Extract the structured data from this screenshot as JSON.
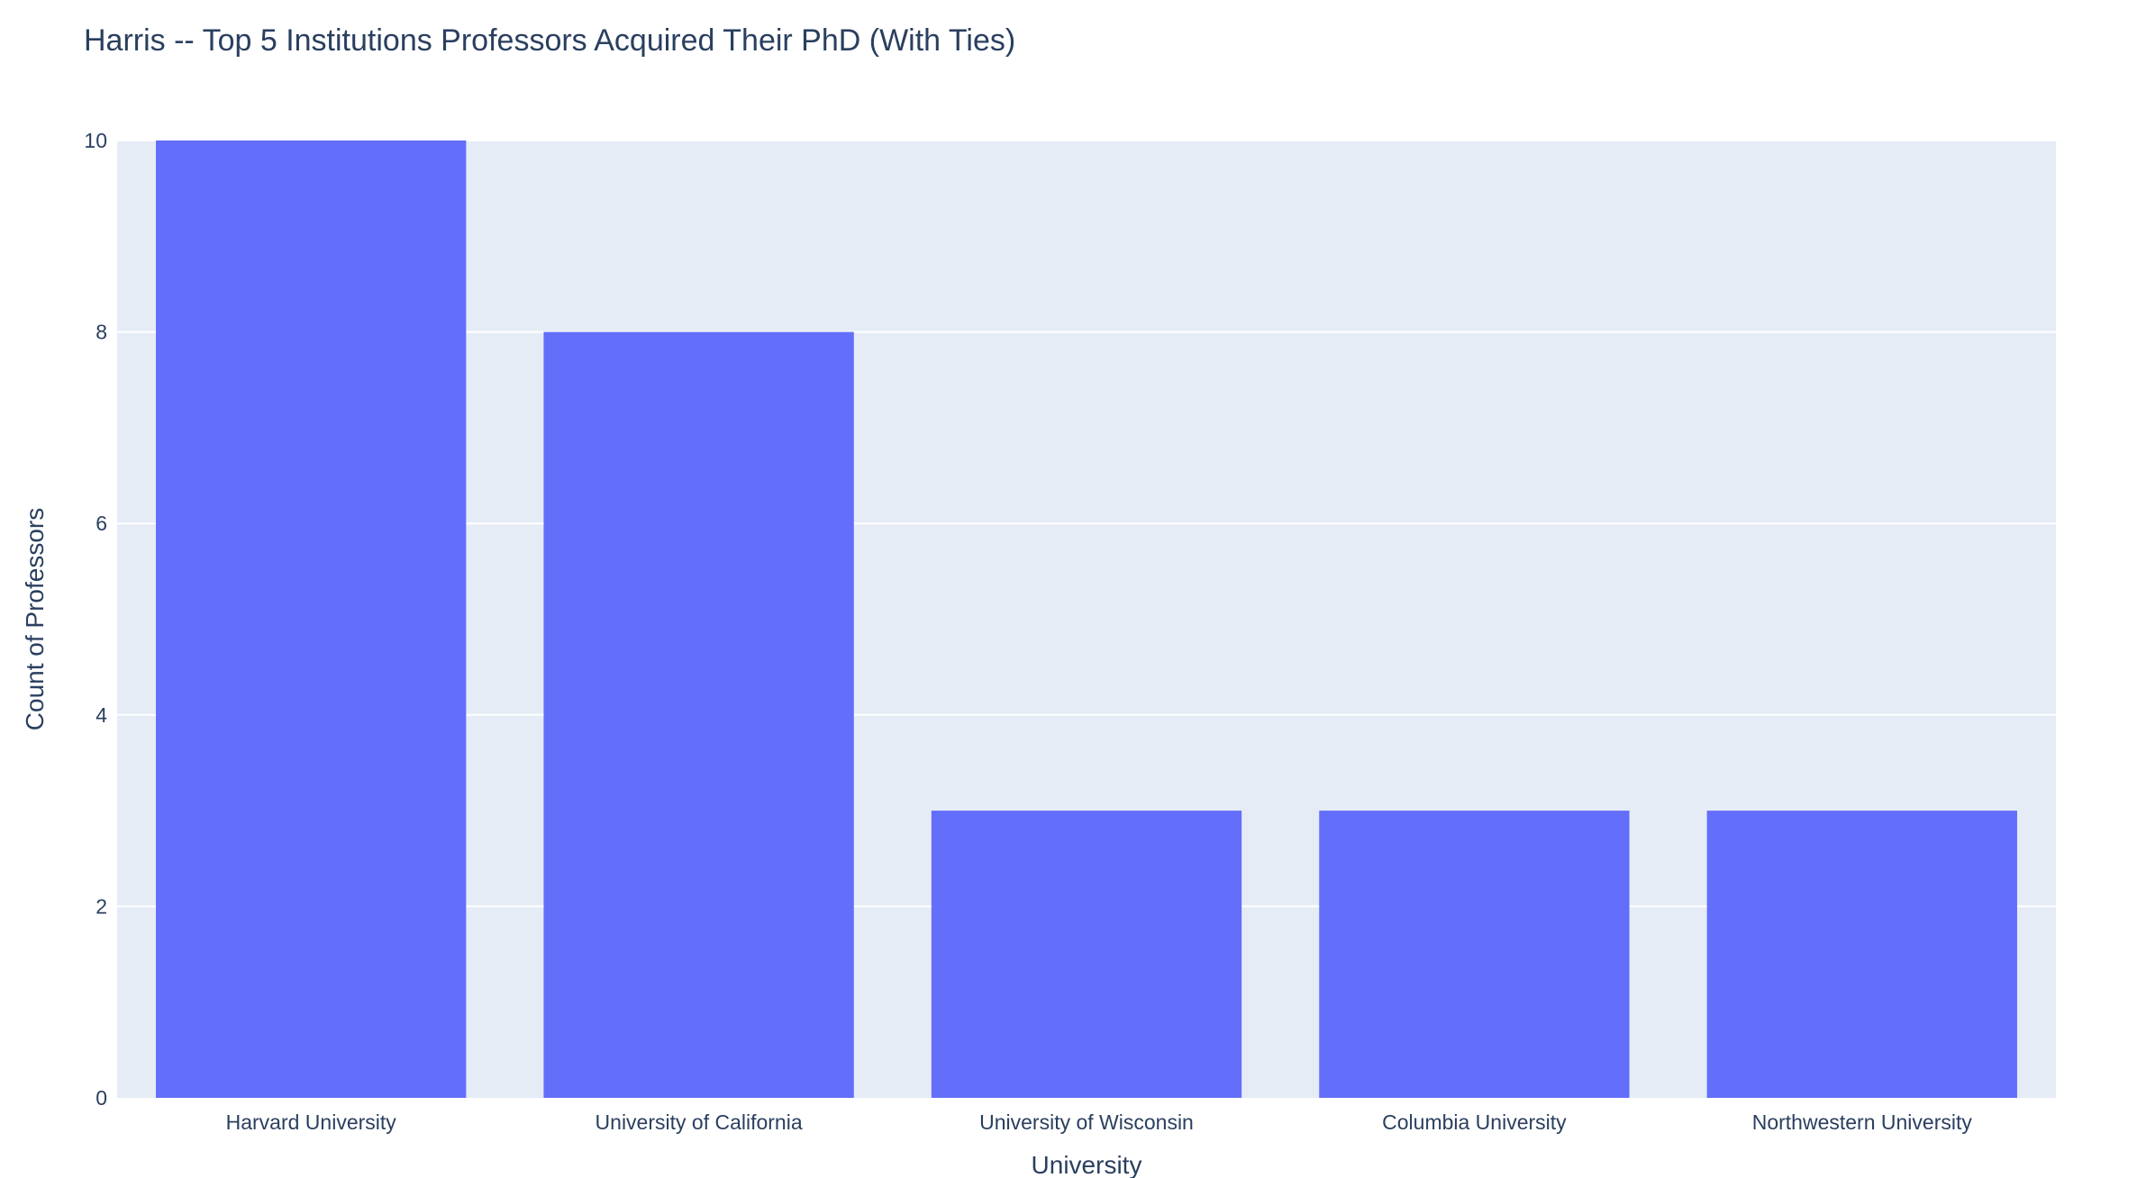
{
  "chart_data": {
    "type": "bar",
    "title": "Harris -- Top 5 Institutions Professors Acquired Their PhD (With Ties)",
    "xlabel": "University",
    "ylabel": "Count of Professors",
    "categories": [
      "Harvard University",
      "University of California",
      "University of Wisconsin",
      "Columbia University",
      "Northwestern University"
    ],
    "values": [
      10,
      8,
      3,
      3,
      3
    ],
    "ylim": [
      0,
      10
    ],
    "yticks": [
      0,
      2,
      4,
      6,
      8,
      10
    ],
    "grid": true,
    "colors": {
      "bar": "#636efa",
      "plot_bg": "#e5ecf6",
      "text": "#2a3f5f"
    }
  }
}
